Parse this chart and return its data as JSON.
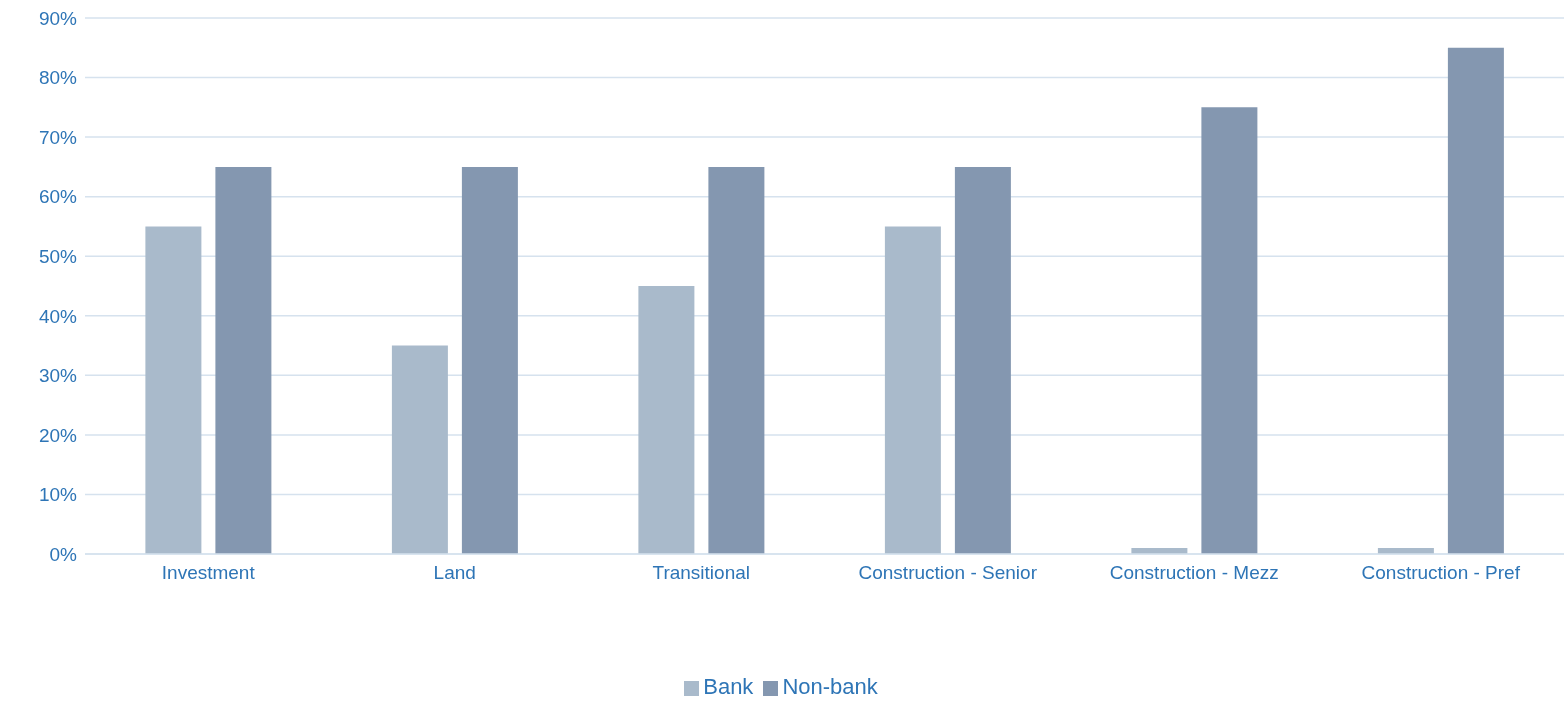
{
  "chart_data": {
    "type": "bar",
    "categories": [
      "Investment",
      "Land",
      "Transitional",
      "Construction - Senior",
      "Construction - Mezz",
      "Construction - Pref"
    ],
    "series": [
      {
        "name": "Bank",
        "color": "#a9bacb",
        "values": [
          55,
          35,
          45,
          55,
          1,
          1
        ]
      },
      {
        "name": "Non-bank",
        "color": "#8497b0",
        "values": [
          65,
          65,
          65,
          65,
          75,
          85
        ]
      }
    ],
    "ylim": [
      0,
      90
    ],
    "yticks": [
      {
        "value": 0,
        "label": "0%"
      },
      {
        "value": 10,
        "label": "10%"
      },
      {
        "value": 20,
        "label": "20%"
      },
      {
        "value": 30,
        "label": "30%"
      },
      {
        "value": 40,
        "label": "40%"
      },
      {
        "value": 50,
        "label": "50%"
      },
      {
        "value": 60,
        "label": "60%"
      },
      {
        "value": 70,
        "label": "70%"
      },
      {
        "value": 80,
        "label": "80%"
      },
      {
        "value": 90,
        "label": "90%"
      }
    ],
    "grid": "y",
    "legend": "bottom"
  }
}
